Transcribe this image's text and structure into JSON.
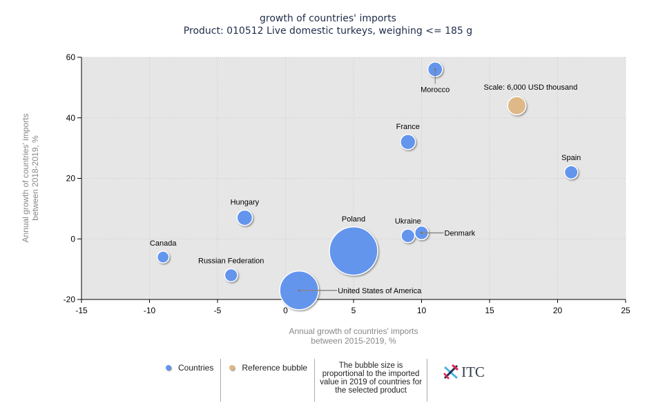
{
  "chart_data": {
    "type": "scatter",
    "subtype": "bubble",
    "title": "growth of countries' imports",
    "subtitle": "Product: 010512 Live domestic turkeys, weighing <= 185 g",
    "xlabel": [
      "Annual growth of countries' imports",
      "between 2015-2019, %"
    ],
    "ylabel": [
      "Annual growth of countries' imports",
      "between 2018-2019, %"
    ],
    "xlim": [
      -15,
      25
    ],
    "ylim": [
      -20,
      60
    ],
    "xticks": [
      -15,
      -10,
      -5,
      0,
      5,
      10,
      15,
      20,
      25
    ],
    "yticks": [
      -20,
      0,
      20,
      40,
      60
    ],
    "grid": true,
    "points": [
      {
        "name": "Morocco",
        "x": 11,
        "y": 56,
        "size": 3.9,
        "label_pos": "below-leader"
      },
      {
        "name": "France",
        "x": 9,
        "y": 32,
        "size": 4.1,
        "label_pos": "above"
      },
      {
        "name": "Spain",
        "x": 21,
        "y": 22,
        "size": 3.2,
        "label_pos": "above"
      },
      {
        "name": "Hungary",
        "x": -3,
        "y": 7,
        "size": 4.3,
        "label_pos": "above"
      },
      {
        "name": "Poland",
        "x": 5,
        "y": -4,
        "size": 42,
        "label_pos": "above"
      },
      {
        "name": "Ukraine",
        "x": 9,
        "y": 1,
        "size": 3.3,
        "label_pos": "above"
      },
      {
        "name": "Denmark",
        "x": 10,
        "y": 2,
        "size": 3.3,
        "label_pos": "right-leader"
      },
      {
        "name": "Canada",
        "x": -9,
        "y": -6,
        "size": 2.5,
        "label_pos": "above"
      },
      {
        "name": "Russian Federation",
        "x": -4,
        "y": -12,
        "size": 3.0,
        "label_pos": "above"
      },
      {
        "name": "United States of America",
        "x": 1,
        "y": -17,
        "size": 27,
        "label_pos": "right-leader"
      }
    ],
    "reference_bubble": {
      "label": "Scale: 6,000 USD thousand",
      "x": 17,
      "y": 44,
      "size": 6
    },
    "series_colors": {
      "countries": "#6495ed",
      "reference": "#deb887"
    }
  },
  "legend": {
    "countries": "Countries",
    "reference": "Reference bubble",
    "note": "The bubble size is proportional to the imported value in 2019 of countries for the selected product",
    "logo": "ITC"
  }
}
